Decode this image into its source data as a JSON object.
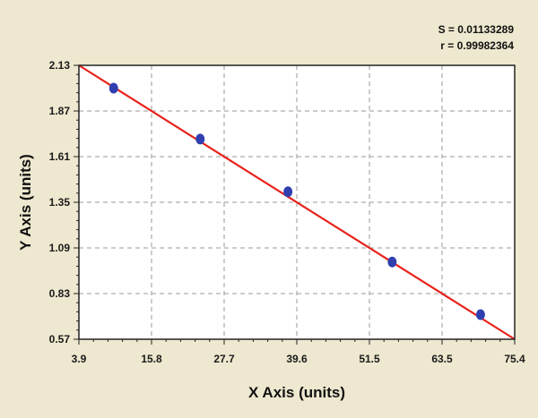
{
  "chart_data": {
    "type": "scatter",
    "title": "",
    "xlabel": "X Axis (units)",
    "ylabel": "Y Axis (units)",
    "xlim": [
      3.9,
      75.4
    ],
    "ylim": [
      0.57,
      2.13
    ],
    "x_ticks": [
      "3.9",
      "15.8",
      "27.7",
      "39.6",
      "51.5",
      "63.5",
      "75.4"
    ],
    "y_ticks": [
      "0.57",
      "0.83",
      "1.09",
      "1.35",
      "1.61",
      "1.87",
      "2.13"
    ],
    "grid": true,
    "points": [
      {
        "x": 9.6,
        "y": 2.0
      },
      {
        "x": 23.8,
        "y": 1.71
      },
      {
        "x": 38.2,
        "y": 1.41
      },
      {
        "x": 55.3,
        "y": 1.01
      },
      {
        "x": 69.8,
        "y": 0.71
      }
    ],
    "fit_line": {
      "x": [
        3.9,
        75.4
      ],
      "y": [
        2.13,
        0.57
      ],
      "color": "#e8231c"
    },
    "point_color": "#2f3fb0",
    "stats": {
      "s_text": "S = 0.01133289",
      "r_text": "r = 0.99982364"
    }
  }
}
